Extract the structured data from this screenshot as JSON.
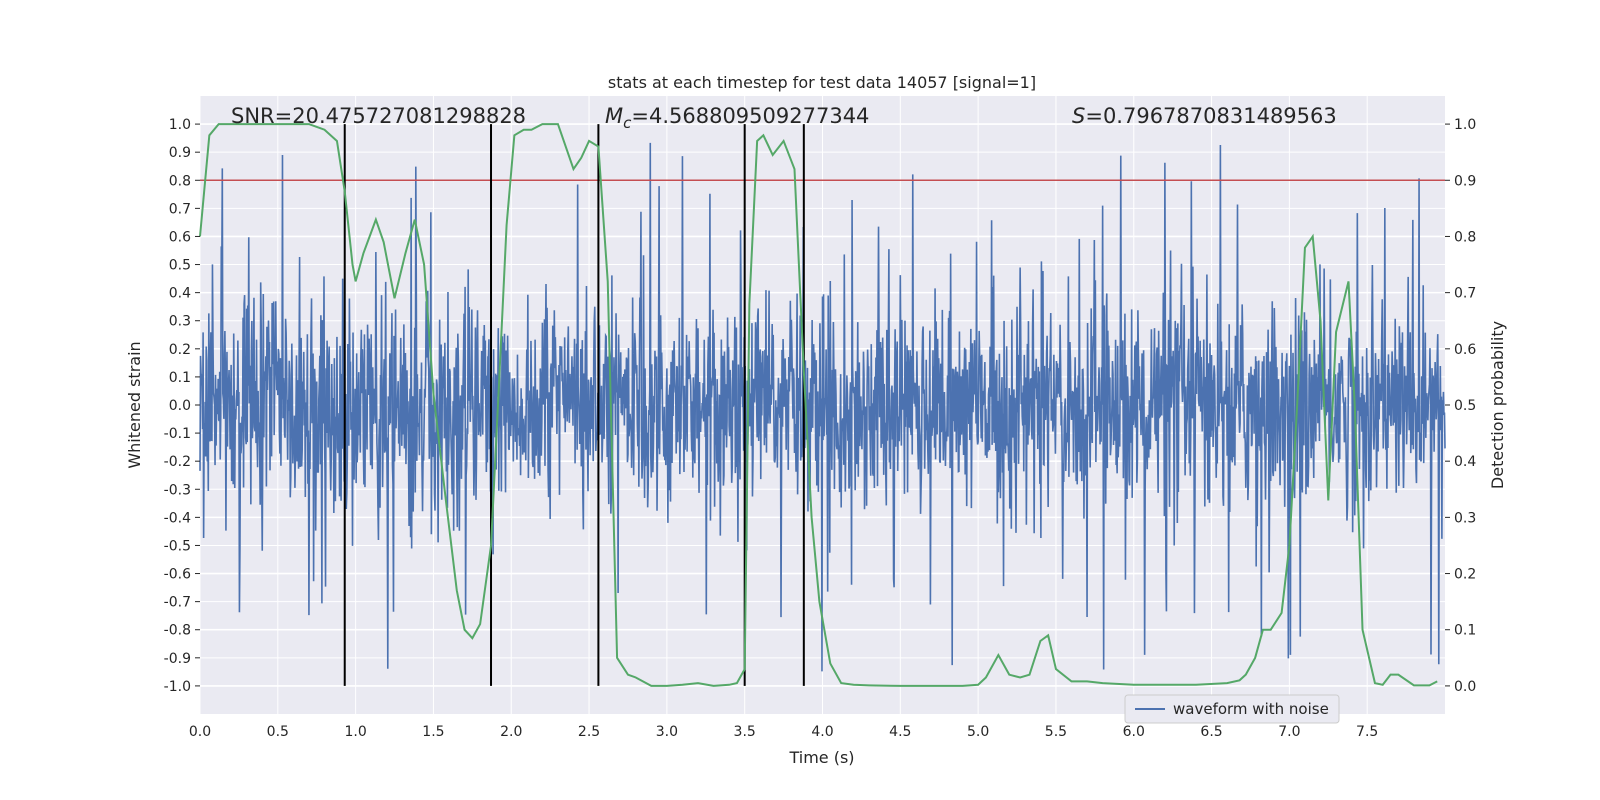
{
  "chart_data": {
    "type": "line",
    "title": "stats at each timestep for test data 14057 [signal=1]",
    "xlabel": "Time (s)",
    "ylabel_left": "Whitened strain",
    "ylabel_right": "Detection probability",
    "xlim": [
      0,
      8
    ],
    "ylim_left": [
      -1.1,
      1.1
    ],
    "ylim_right": [
      -0.05,
      1.05
    ],
    "x_ticks": [
      "0.0",
      "0.5",
      "1.0",
      "1.5",
      "2.0",
      "2.5",
      "3.0",
      "3.5",
      "4.0",
      "4.5",
      "5.0",
      "5.5",
      "6.0",
      "6.5",
      "7.0",
      "7.5"
    ],
    "y_ticks_left": [
      "1.0",
      "0.9",
      "0.8",
      "0.7",
      "0.6",
      "0.5",
      "0.4",
      "0.3",
      "0.2",
      "0.1",
      "0.0",
      "-0.1",
      "-0.2",
      "-0.3",
      "-0.4",
      "-0.5",
      "-0.6",
      "-0.7",
      "-0.8",
      "-0.9",
      "-1.0"
    ],
    "y_ticks_right": [
      "1.0",
      "0.9",
      "0.8",
      "0.7",
      "0.6",
      "0.5",
      "0.4",
      "0.3",
      "0.2",
      "0.1",
      "0.0"
    ],
    "grid": true,
    "legend_position": "lower-right",
    "annotations": {
      "snr": "SNR=20.475727081298828",
      "mc_symbol": "M",
      "mc_sub": "c",
      "mc_value": "=4.568809509277344",
      "s_symbol": "S",
      "s_value": "=0.7967870831489563"
    },
    "threshold_line": {
      "y": 0.8,
      "color": "#c44e52"
    },
    "vertical_lines": {
      "x": [
        0.93,
        1.87,
        2.56,
        3.5,
        3.88
      ],
      "y_range": [
        -1.0,
        1.0
      ],
      "color": "#000000"
    },
    "series": [
      {
        "name": "waveform with noise",
        "axis": "left",
        "color": "#4c72b0",
        "envelope": "dense noise, mostly within about ±0.4 with spikes up to about ±1.0"
      },
      {
        "axis": "right",
        "color": "#55a868",
        "x": [
          0.0,
          0.06,
          0.12,
          0.2,
          0.3,
          0.4,
          0.5,
          0.6,
          0.7,
          0.8,
          0.88,
          0.93,
          0.98,
          1.0,
          1.05,
          1.13,
          1.18,
          1.25,
          1.32,
          1.38,
          1.44,
          1.5,
          1.58,
          1.65,
          1.7,
          1.75,
          1.8,
          1.87,
          1.92,
          1.97,
          2.02,
          2.08,
          2.13,
          2.2,
          2.3,
          2.4,
          2.45,
          2.5,
          2.56,
          2.62,
          2.68,
          2.75,
          2.8,
          2.9,
          3.0,
          3.1,
          3.2,
          3.3,
          3.4,
          3.45,
          3.5,
          3.53,
          3.58,
          3.62,
          3.68,
          3.75,
          3.82,
          3.88,
          3.93,
          3.98,
          4.05,
          4.12,
          4.2,
          4.3,
          4.5,
          4.7,
          4.9,
          5.0,
          5.05,
          5.13,
          5.2,
          5.27,
          5.33,
          5.4,
          5.45,
          5.5,
          5.6,
          5.7,
          5.8,
          6.0,
          6.2,
          6.4,
          6.6,
          6.68,
          6.72,
          6.78,
          6.83,
          6.88,
          6.95,
          7.0,
          7.05,
          7.1,
          7.15,
          7.2,
          7.25,
          7.3,
          7.38,
          7.42,
          7.47,
          7.55,
          7.6,
          7.65,
          7.7,
          7.8,
          7.9,
          7.95
        ],
        "values": [
          0.8,
          0.98,
          1.0,
          1.0,
          1.0,
          1.0,
          1.0,
          1.0,
          1.0,
          0.99,
          0.97,
          0.88,
          0.75,
          0.72,
          0.77,
          0.83,
          0.79,
          0.69,
          0.77,
          0.83,
          0.75,
          0.52,
          0.33,
          0.17,
          0.1,
          0.085,
          0.11,
          0.25,
          0.53,
          0.82,
          0.98,
          0.99,
          0.99,
          1.0,
          1.0,
          0.92,
          0.94,
          0.97,
          0.96,
          0.72,
          0.05,
          0.02,
          0.015,
          0.0,
          0.0,
          0.002,
          0.005,
          0.0,
          0.002,
          0.005,
          0.03,
          0.68,
          0.97,
          0.98,
          0.945,
          0.97,
          0.92,
          0.56,
          0.3,
          0.15,
          0.04,
          0.005,
          0.002,
          0.001,
          0.0,
          0.0,
          0.0,
          0.002,
          0.015,
          0.055,
          0.02,
          0.015,
          0.02,
          0.08,
          0.09,
          0.03,
          0.008,
          0.008,
          0.005,
          0.002,
          0.002,
          0.002,
          0.005,
          0.01,
          0.02,
          0.05,
          0.1,
          0.1,
          0.13,
          0.25,
          0.5,
          0.78,
          0.8,
          0.65,
          0.33,
          0.63,
          0.72,
          0.5,
          0.1,
          0.005,
          0.002,
          0.02,
          0.02,
          0.001,
          0.001,
          0.008
        ]
      }
    ]
  }
}
